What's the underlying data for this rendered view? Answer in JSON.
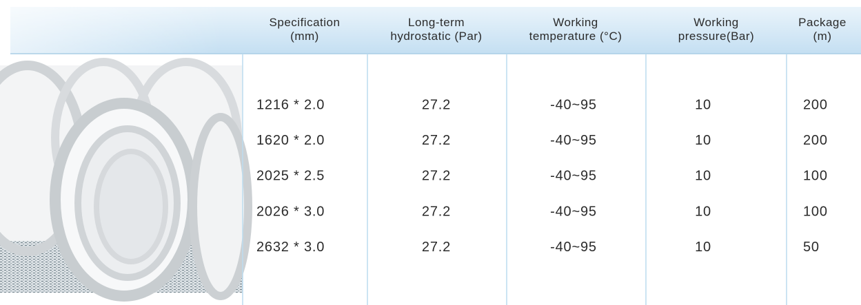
{
  "table": {
    "header": [
      [
        "Specification",
        "(mm)"
      ],
      [
        "Long-term",
        "hydrostatic (Par)"
      ],
      [
        "Working",
        "temperature (°C)"
      ],
      [
        "Working",
        "pressure(Bar)"
      ],
      [
        "Package",
        "(m)"
      ]
    ],
    "rows": [
      [
        "1216 * 2.0",
        "27.2",
        "-40~95",
        "10",
        "200"
      ],
      [
        "1620 * 2.0",
        "27.2",
        "-40~95",
        "10",
        "200"
      ],
      [
        "2025 * 2.5",
        "27.2",
        "-40~95",
        "10",
        "100"
      ],
      [
        "2026 * 3.0",
        "27.2",
        "-40~95",
        "10",
        "100"
      ],
      [
        "2632 * 3.0",
        "27.2",
        "-40~95",
        "10",
        "50"
      ]
    ]
  }
}
